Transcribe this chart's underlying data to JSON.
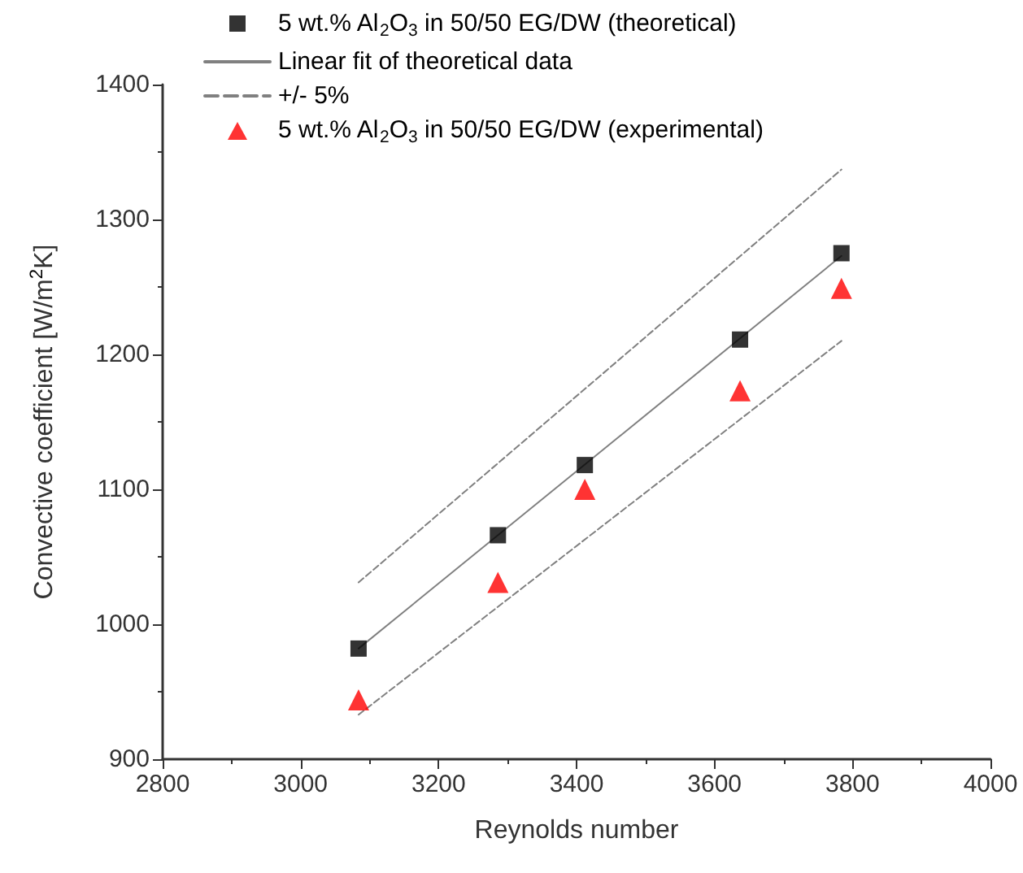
{
  "chart_data": {
    "type": "scatter",
    "xlabel": "Reynolds number",
    "ylabel": "Convective coefficient [W/m$^{2}$K]",
    "xlim": [
      2800,
      4000
    ],
    "xticks": [
      2800,
      3000,
      3200,
      3400,
      3600,
      3800,
      4000
    ],
    "ylim": [
      900,
      1400
    ],
    "yticks": [
      900,
      1000,
      1100,
      1200,
      1300,
      1400
    ],
    "grid": false,
    "legend": "top",
    "series": [
      {
        "name": "5 wt.% Al$_{2}$O$_{3}$ in 50/50 EG/DW (theoretical)",
        "marker": "square",
        "color": "#000000",
        "x": [
          3084,
          3286,
          3412,
          3637,
          3784
        ],
        "values": [
          982,
          1066,
          1118,
          1211,
          1275
        ]
      },
      {
        "name": "Linear fit of theoretical data",
        "type": "line",
        "marker": "none",
        "line_style": "solid",
        "color": "#808080",
        "x": [
          3084,
          3784
        ],
        "values": [
          982,
          1273
        ]
      },
      {
        "name": "+/- 5%",
        "type": "line",
        "marker": "none",
        "line_style": "dashed",
        "color": "#808080",
        "x": [
          3084,
          3784
        ],
        "values": [
          1031,
          1337
        ]
      },
      {
        "type": "line",
        "marker": "none",
        "line_style": "dashed",
        "color": "#808080",
        "x": [
          3084,
          3784
        ],
        "values": [
          933,
          1210
        ]
      },
      {
        "name": "5 wt.% Al$_{2}$O$_{3}$ in 50/50 EG/DW (experimental)",
        "marker": "triangle",
        "color": "#ff0000",
        "x": [
          3084,
          3286,
          3412,
          3637,
          3784
        ],
        "values": [
          944,
          1031,
          1100,
          1173,
          1249
        ]
      }
    ]
  }
}
